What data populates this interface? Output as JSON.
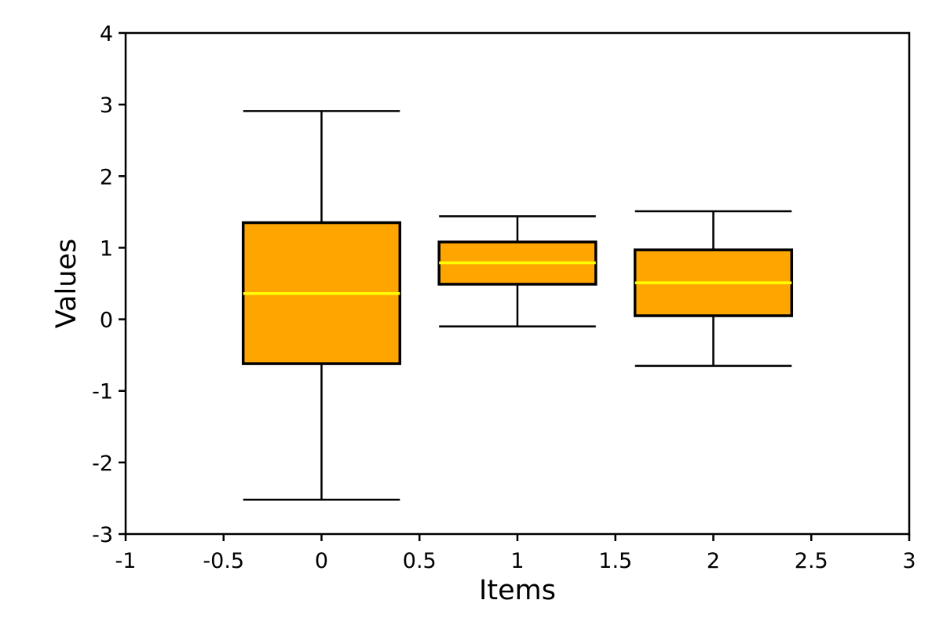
{
  "chart_data": {
    "type": "box",
    "title": "",
    "xlabel": "Items",
    "ylabel": "Values",
    "xlim": [
      -1,
      3
    ],
    "ylim": [
      -3,
      4
    ],
    "xticks": [
      -1,
      -0.5,
      0,
      0.5,
      1,
      1.5,
      2,
      2.5,
      3
    ],
    "xtick_labels": [
      "-1",
      "-0.5",
      "0",
      "0.5",
      "1",
      "1.5",
      "2",
      "2.5",
      "3"
    ],
    "yticks": [
      -3,
      -2,
      -1,
      0,
      1,
      2,
      3,
      4
    ],
    "ytick_labels": [
      "-3",
      "-2",
      "-1",
      "0",
      "1",
      "2",
      "3",
      "4"
    ],
    "grid": false,
    "box_width": 0.8,
    "boxes": [
      {
        "x": 0,
        "whisker_low": -2.52,
        "q1": -0.62,
        "median": 0.36,
        "q3": 1.35,
        "whisker_high": 2.91
      },
      {
        "x": 1,
        "whisker_low": -0.1,
        "q1": 0.49,
        "median": 0.79,
        "q3": 1.08,
        "whisker_high": 1.44
      },
      {
        "x": 2,
        "whisker_low": -0.65,
        "q1": 0.05,
        "median": 0.51,
        "q3": 0.97,
        "whisker_high": 1.51
      }
    ],
    "colors": {
      "box_fill": "#FFA500",
      "median": "#FFFF00",
      "lines": "#000000"
    }
  }
}
